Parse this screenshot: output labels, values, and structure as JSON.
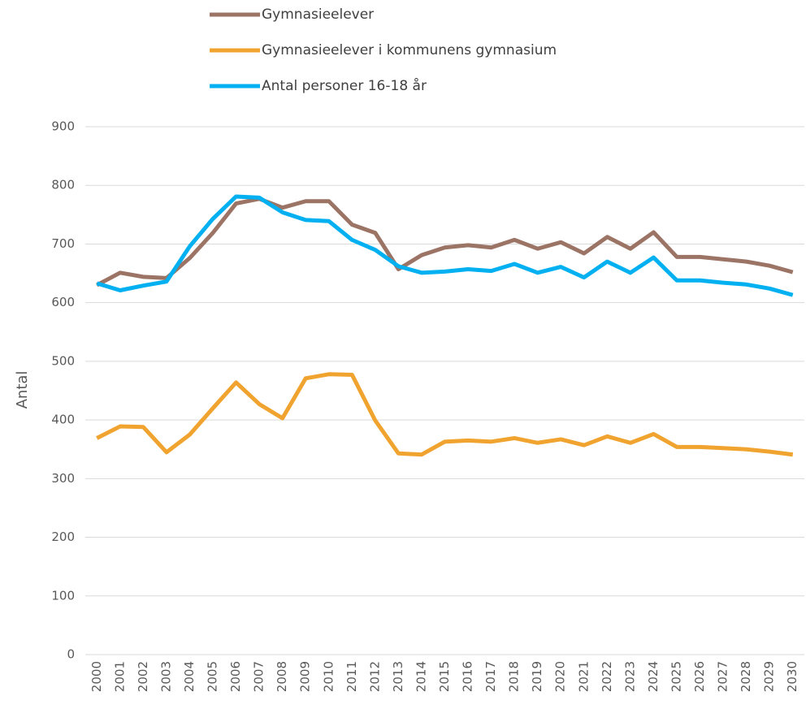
{
  "chart_data": {
    "type": "line",
    "y_label": "Antal",
    "categories": [
      "2000",
      "2001",
      "2002",
      "2003",
      "2004",
      "2005",
      "2006",
      "2007",
      "2008",
      "2009",
      "2010",
      "2011",
      "2012",
      "2013",
      "2014",
      "2015",
      "2016",
      "2017",
      "2018",
      "2019",
      "2020",
      "2021",
      "2022",
      "2023",
      "2024",
      "2025",
      "2026",
      "2027",
      "2028",
      "2029",
      "2030"
    ],
    "series": [
      {
        "name": "Gymnasieelever",
        "color": "#9b7465",
        "values": [
          630,
          651,
          644,
          642,
          676,
          719,
          769,
          777,
          762,
          773,
          773,
          733,
          719,
          657,
          681,
          694,
          698,
          694,
          707,
          692,
          703,
          684,
          712,
          692,
          720,
          678,
          678,
          674,
          670,
          663,
          652
        ]
      },
      {
        "name": "Gymnasieelever i kommunens gymnasium",
        "color": "#f0a32e",
        "values": [
          369,
          389,
          388,
          345,
          375,
          420,
          464,
          427,
          403,
          471,
          478,
          477,
          399,
          343,
          341,
          363,
          365,
          363,
          369,
          361,
          367,
          357,
          372,
          361,
          376,
          354,
          354,
          352,
          350,
          346,
          341
        ]
      },
      {
        "name": "Antal personer 16-18 år",
        "color": "#00b0f0",
        "values": [
          633,
          621,
          629,
          636,
          696,
          743,
          781,
          779,
          754,
          741,
          739,
          707,
          690,
          662,
          651,
          653,
          657,
          654,
          666,
          651,
          661,
          643,
          670,
          651,
          677,
          638,
          638,
          634,
          631,
          624,
          613
        ]
      }
    ],
    "ylim": [
      0,
      900
    ],
    "yticks": [
      0,
      100,
      200,
      300,
      400,
      500,
      600,
      700,
      800,
      900
    ],
    "grid": true,
    "legend": "top"
  }
}
